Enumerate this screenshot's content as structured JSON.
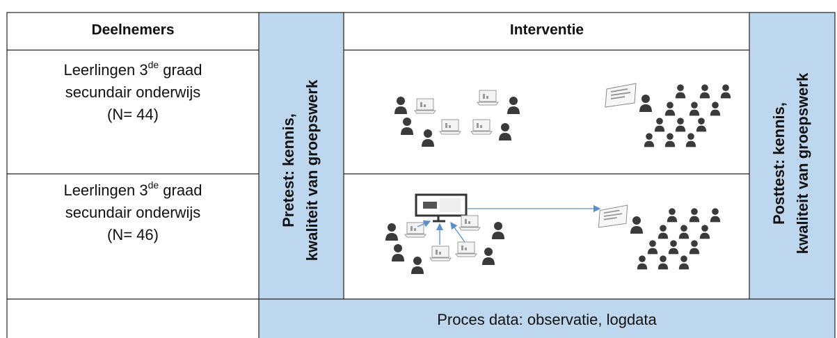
{
  "header": {
    "participants": "Deelnemers",
    "intervention": "Interventie"
  },
  "groups": [
    {
      "line1": "Leerlingen 3",
      "sup": "de",
      "line1_end": " graad",
      "line2": "secundair onderwijs",
      "line3": "(N= 44)"
    },
    {
      "line1": "Leerlingen 3",
      "sup": "de",
      "line1_end": " graad",
      "line2": "secundair onderwijs",
      "line3": "(N= 46)"
    }
  ],
  "pretest": {
    "line1": "Pretest: kennis,",
    "line2": "kwaliteit van groepswerk"
  },
  "posttest": {
    "line1": "Posttest: kennis,",
    "line2": "kwaliteit van groepswerk"
  },
  "process": "Proces data: observatie, logdata"
}
